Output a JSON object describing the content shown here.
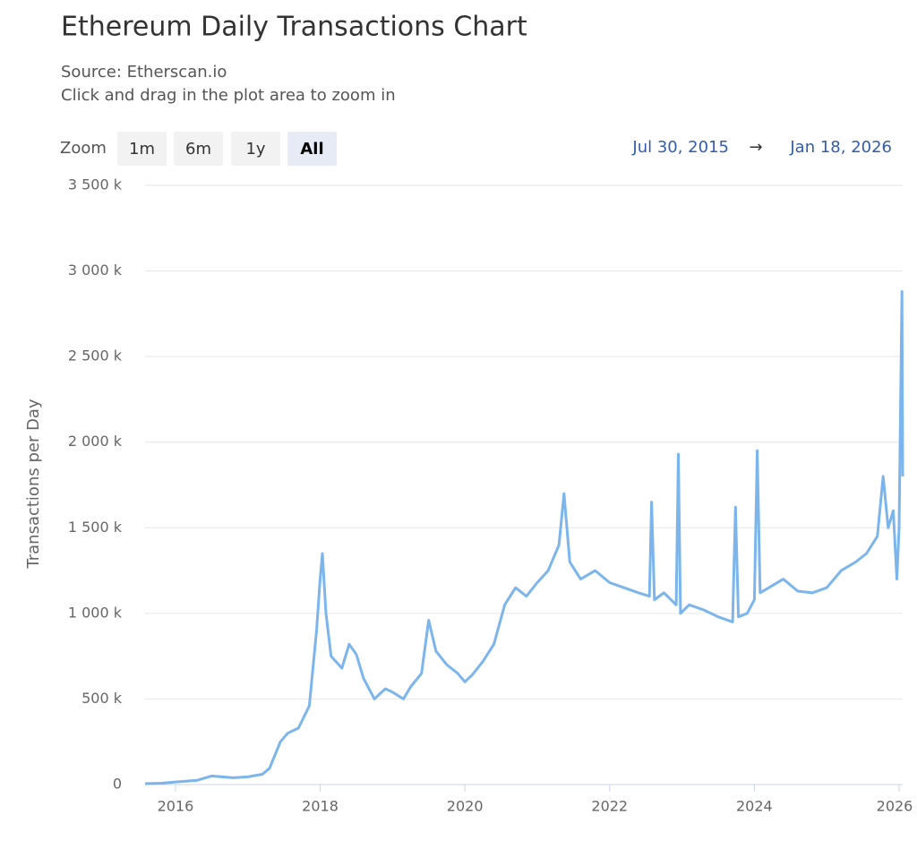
{
  "chart_data": {
    "type": "line",
    "title": "Ethereum Daily Transactions Chart",
    "subtitle": [
      "Source: Etherscan.io",
      "Click and drag in the plot area to zoom in"
    ],
    "zoom_label": "Zoom",
    "zoom_buttons": [
      "1m",
      "6m",
      "1y",
      "All"
    ],
    "selected_zoom": 3,
    "range_from": "Jul 30, 2015",
    "range_separator": "→",
    "range_to": "Jan 18, 2026",
    "y_label": "Transactions per Day",
    "color": "#7cb5ec",
    "grid": true,
    "x": [
      2015.58,
      2015.8,
      2016.0,
      2016.3,
      2016.5,
      2016.8,
      2017.0,
      2017.2,
      2017.3,
      2017.45,
      2017.55,
      2017.7,
      2017.85,
      2017.95,
      2018.0,
      2018.03,
      2018.08,
      2018.15,
      2018.3,
      2018.4,
      2018.5,
      2018.6,
      2018.75,
      2018.9,
      2019.0,
      2019.15,
      2019.25,
      2019.4,
      2019.5,
      2019.6,
      2019.75,
      2019.9,
      2020.0,
      2020.1,
      2020.25,
      2020.4,
      2020.55,
      2020.7,
      2020.85,
      2021.0,
      2021.15,
      2021.3,
      2021.37,
      2021.45,
      2021.6,
      2021.8,
      2022.0,
      2022.2,
      2022.4,
      2022.55,
      2022.58,
      2022.62,
      2022.75,
      2022.92,
      2022.95,
      2022.98,
      2023.1,
      2023.3,
      2023.5,
      2023.7,
      2023.74,
      2023.78,
      2023.9,
      2024.0,
      2024.04,
      2024.08,
      2024.2,
      2024.4,
      2024.6,
      2024.8,
      2025.0,
      2025.2,
      2025.4,
      2025.55,
      2025.7,
      2025.78,
      2025.85,
      2025.92,
      2025.97,
      2026.0,
      2026.02,
      2026.04,
      2026.05
    ],
    "values": [
      5000,
      8000,
      15000,
      25000,
      50000,
      40000,
      45000,
      60000,
      95000,
      250000,
      300000,
      330000,
      460000,
      900000,
      1200000,
      1350000,
      1000000,
      750000,
      680000,
      820000,
      760000,
      620000,
      500000,
      560000,
      540000,
      500000,
      570000,
      650000,
      960000,
      780000,
      700000,
      650000,
      600000,
      640000,
      720000,
      820000,
      1050000,
      1150000,
      1100000,
      1180000,
      1250000,
      1400000,
      1700000,
      1300000,
      1200000,
      1250000,
      1180000,
      1150000,
      1120000,
      1100000,
      1650000,
      1080000,
      1120000,
      1050000,
      1930000,
      1000000,
      1050000,
      1020000,
      980000,
      950000,
      1620000,
      980000,
      1000000,
      1080000,
      1950000,
      1120000,
      1150000,
      1200000,
      1130000,
      1120000,
      1150000,
      1250000,
      1300000,
      1350000,
      1450000,
      1800000,
      1500000,
      1600000,
      1200000,
      1500000,
      2200000,
      2880000,
      1800000
    ],
    "xlim": [
      2015.58,
      2026.05
    ],
    "xticks": [
      2016,
      2018,
      2020,
      2022,
      2024,
      2026
    ],
    "ylim": [
      0,
      3500000
    ],
    "yticks": [
      0,
      {
        "value": 500000,
        "label": "500 k"
      },
      {
        "value": 1000000,
        "label": "1 000 k"
      },
      {
        "value": 1500000,
        "label": "1 500 k"
      },
      {
        "value": 2000000,
        "label": "2 000 k"
      },
      {
        "value": 2500000,
        "label": "2 500 k"
      },
      {
        "value": 3000000,
        "label": "3 000 k"
      },
      {
        "value": 3500000,
        "label": "3 500 k"
      }
    ]
  }
}
